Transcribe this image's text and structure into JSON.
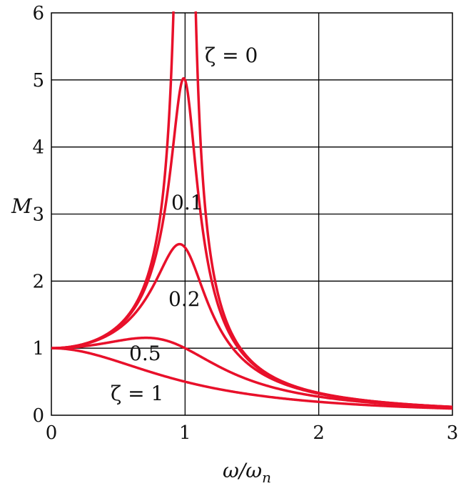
{
  "chart_data": {
    "type": "line",
    "title": "",
    "xlabel": "ω/ω",
    "xlabel_sub": "n",
    "ylabel": "M",
    "xlim": [
      0,
      3
    ],
    "ylim": [
      0,
      6
    ],
    "xticks": [
      0,
      1,
      2,
      3
    ],
    "yticks": [
      0,
      1,
      2,
      3,
      4,
      5,
      6
    ],
    "grid": true,
    "series": [
      {
        "name": "ζ = 0",
        "zeta": 0
      },
      {
        "name": "0.1",
        "zeta": 0.1
      },
      {
        "name": "0.2",
        "zeta": 0.2
      },
      {
        "name": "0.5",
        "zeta": 0.5
      },
      {
        "name": "ζ = 1",
        "zeta": 1
      }
    ],
    "curve_color": "#e8102a"
  }
}
